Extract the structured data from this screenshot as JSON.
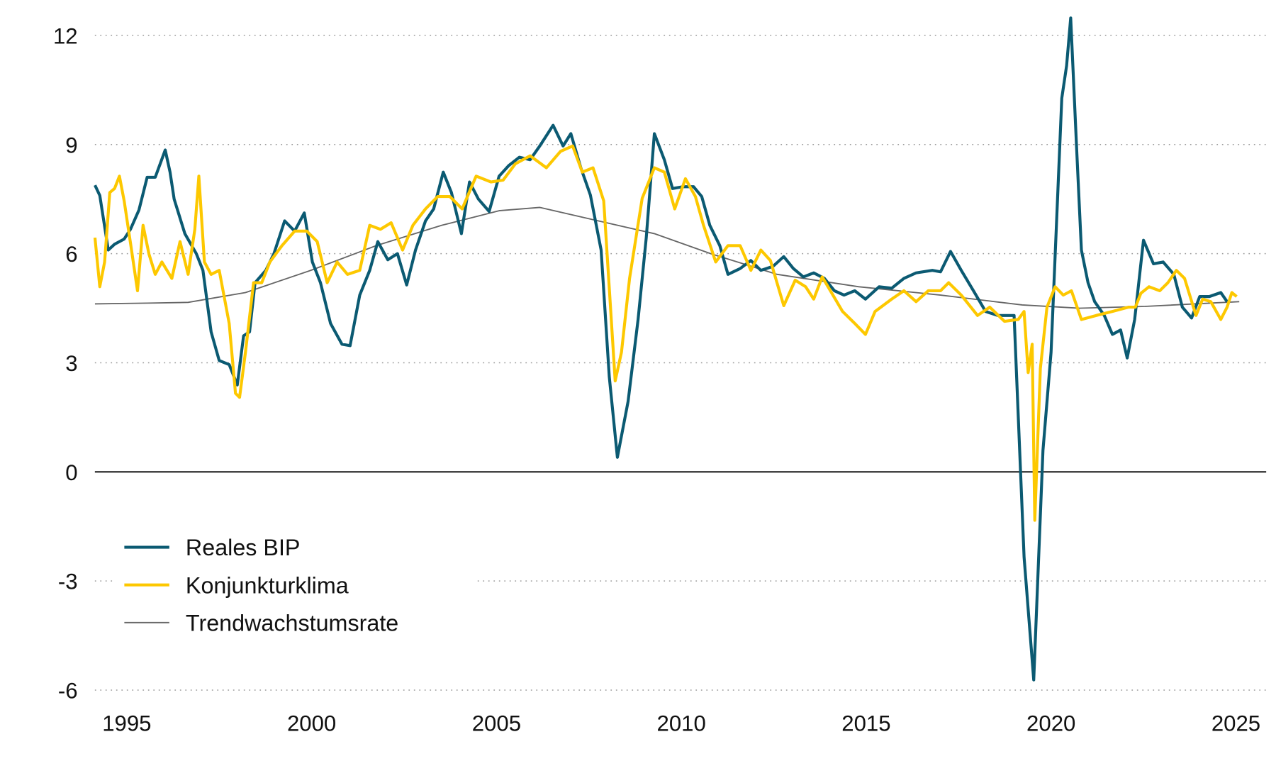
{
  "chart_data": {
    "type": "line",
    "title": "",
    "xlabel": "",
    "ylabel": "",
    "xlim": [
      1994.1,
      2025.3
    ],
    "ylim": [
      -6,
      12.5
    ],
    "x_ticks": [
      1995,
      2000,
      2005,
      2010,
      2015,
      2020,
      2025
    ],
    "y_ticks": [
      12,
      9,
      6,
      3,
      0,
      -3,
      -6
    ],
    "grid": "horizontal dotted",
    "legend_position": "bottom-left",
    "series": [
      {
        "name": "Reales BIP",
        "color": "#0b5a72",
        "points": [
          [
            1994.14,
            7.88
          ],
          [
            1994.27,
            7.6
          ],
          [
            1994.5,
            6.1
          ],
          [
            1994.67,
            6.26
          ],
          [
            1994.93,
            6.4
          ],
          [
            1995.1,
            6.67
          ],
          [
            1995.33,
            7.2
          ],
          [
            1995.55,
            8.1
          ],
          [
            1995.77,
            8.1
          ],
          [
            1996.04,
            8.85
          ],
          [
            1996.17,
            8.24
          ],
          [
            1996.28,
            7.5
          ],
          [
            1996.57,
            6.55
          ],
          [
            1996.88,
            6.0
          ],
          [
            1997.06,
            5.54
          ],
          [
            1997.28,
            3.85
          ],
          [
            1997.5,
            3.06
          ],
          [
            1997.77,
            2.95
          ],
          [
            1997.99,
            2.39
          ],
          [
            1998.16,
            3.74
          ],
          [
            1998.32,
            3.85
          ],
          [
            1998.47,
            5.2
          ],
          [
            1998.76,
            5.54
          ],
          [
            1998.98,
            6.0
          ],
          [
            1999.27,
            6.9
          ],
          [
            1999.54,
            6.62
          ],
          [
            1999.8,
            7.12
          ],
          [
            2000.02,
            5.77
          ],
          [
            2000.24,
            5.2
          ],
          [
            2000.51,
            4.08
          ],
          [
            2000.82,
            3.51
          ],
          [
            2001.04,
            3.47
          ],
          [
            2001.3,
            4.86
          ],
          [
            2001.57,
            5.54
          ],
          [
            2001.79,
            6.33
          ],
          [
            2002.06,
            5.83
          ],
          [
            2002.32,
            6.0
          ],
          [
            2002.57,
            5.14
          ],
          [
            2002.81,
            6.1
          ],
          [
            2003.08,
            6.9
          ],
          [
            2003.3,
            7.23
          ],
          [
            2003.56,
            8.24
          ],
          [
            2003.78,
            7.68
          ],
          [
            2004.05,
            6.55
          ],
          [
            2004.27,
            7.97
          ],
          [
            2004.51,
            7.5
          ],
          [
            2004.8,
            7.16
          ],
          [
            2005.07,
            8.13
          ],
          [
            2005.33,
            8.42
          ],
          [
            2005.62,
            8.65
          ],
          [
            2005.91,
            8.58
          ],
          [
            2006.17,
            8.96
          ],
          [
            2006.53,
            9.53
          ],
          [
            2006.8,
            8.96
          ],
          [
            2007.01,
            9.3
          ],
          [
            2007.28,
            8.36
          ],
          [
            2007.54,
            7.61
          ],
          [
            2007.83,
            6.1
          ],
          [
            2008.05,
            2.61
          ],
          [
            2008.27,
            0.4
          ],
          [
            2008.56,
            1.94
          ],
          [
            2008.83,
            4.19
          ],
          [
            2009.05,
            6.44
          ],
          [
            2009.27,
            9.3
          ],
          [
            2009.54,
            8.58
          ],
          [
            2009.76,
            7.79
          ],
          [
            2010.04,
            7.84
          ],
          [
            2010.33,
            7.84
          ],
          [
            2010.55,
            7.57
          ],
          [
            2010.77,
            6.78
          ],
          [
            2011.04,
            6.22
          ],
          [
            2011.26,
            5.43
          ],
          [
            2011.59,
            5.59
          ],
          [
            2011.88,
            5.81
          ],
          [
            2012.15,
            5.54
          ],
          [
            2012.48,
            5.65
          ],
          [
            2012.77,
            5.92
          ],
          [
            2013.03,
            5.59
          ],
          [
            2013.3,
            5.36
          ],
          [
            2013.58,
            5.47
          ],
          [
            2013.87,
            5.32
          ],
          [
            2014.14,
            4.98
          ],
          [
            2014.4,
            4.86
          ],
          [
            2014.69,
            4.98
          ],
          [
            2014.98,
            4.75
          ],
          [
            2015.35,
            5.09
          ],
          [
            2015.69,
            5.05
          ],
          [
            2016.02,
            5.32
          ],
          [
            2016.35,
            5.47
          ],
          [
            2016.79,
            5.54
          ],
          [
            2017.01,
            5.5
          ],
          [
            2017.28,
            6.06
          ],
          [
            2017.57,
            5.54
          ],
          [
            2017.9,
            4.98
          ],
          [
            2018.23,
            4.41
          ],
          [
            2018.56,
            4.3
          ],
          [
            2019.0,
            4.3
          ],
          [
            2019.27,
            -2.34
          ],
          [
            2019.53,
            -5.72
          ],
          [
            2019.78,
            0.59
          ],
          [
            2020.0,
            3.29
          ],
          [
            2020.29,
            10.27
          ],
          [
            2020.42,
            11.17
          ],
          [
            2020.53,
            12.48
          ],
          [
            2020.69,
            8.92
          ],
          [
            2020.82,
            6.1
          ],
          [
            2021.0,
            5.2
          ],
          [
            2021.18,
            4.68
          ],
          [
            2021.44,
            4.3
          ],
          [
            2021.66,
            3.78
          ],
          [
            2021.88,
            3.9
          ],
          [
            2022.06,
            3.13
          ],
          [
            2022.26,
            4.19
          ],
          [
            2022.5,
            6.37
          ],
          [
            2022.77,
            5.72
          ],
          [
            2023.03,
            5.77
          ],
          [
            2023.32,
            5.43
          ],
          [
            2023.55,
            4.53
          ],
          [
            2023.8,
            4.23
          ],
          [
            2024.02,
            4.82
          ],
          [
            2024.28,
            4.82
          ],
          [
            2024.59,
            4.93
          ],
          [
            2024.76,
            4.68
          ]
        ]
      },
      {
        "name": "Konjunkturklima",
        "color": "#fdc800",
        "points": [
          [
            1994.14,
            6.44
          ],
          [
            1994.27,
            5.09
          ],
          [
            1994.4,
            5.77
          ],
          [
            1994.54,
            7.68
          ],
          [
            1994.67,
            7.79
          ],
          [
            1994.8,
            8.13
          ],
          [
            1994.93,
            7.45
          ],
          [
            1995.11,
            6.22
          ],
          [
            1995.29,
            4.98
          ],
          [
            1995.44,
            6.78
          ],
          [
            1995.6,
            5.99
          ],
          [
            1995.77,
            5.43
          ],
          [
            1995.95,
            5.77
          ],
          [
            1996.22,
            5.32
          ],
          [
            1996.44,
            6.33
          ],
          [
            1996.66,
            5.43
          ],
          [
            1996.84,
            6.67
          ],
          [
            1996.95,
            8.13
          ],
          [
            1997.1,
            5.77
          ],
          [
            1997.28,
            5.43
          ],
          [
            1997.5,
            5.54
          ],
          [
            1997.77,
            4.08
          ],
          [
            1997.94,
            2.16
          ],
          [
            1998.05,
            2.05
          ],
          [
            1998.21,
            3.29
          ],
          [
            1998.43,
            5.2
          ],
          [
            1998.65,
            5.2
          ],
          [
            1998.87,
            5.77
          ],
          [
            1999.2,
            6.22
          ],
          [
            1999.54,
            6.62
          ],
          [
            1999.87,
            6.62
          ],
          [
            2000.15,
            6.33
          ],
          [
            2000.42,
            5.2
          ],
          [
            2000.69,
            5.77
          ],
          [
            2000.97,
            5.43
          ],
          [
            2001.3,
            5.54
          ],
          [
            2001.57,
            6.78
          ],
          [
            2001.86,
            6.67
          ],
          [
            2002.15,
            6.85
          ],
          [
            2002.46,
            6.1
          ],
          [
            2002.74,
            6.78
          ],
          [
            2003.08,
            7.23
          ],
          [
            2003.41,
            7.57
          ],
          [
            2003.74,
            7.57
          ],
          [
            2004.07,
            7.23
          ],
          [
            2004.45,
            8.13
          ],
          [
            2004.85,
            7.97
          ],
          [
            2005.18,
            8.02
          ],
          [
            2005.51,
            8.47
          ],
          [
            2005.91,
            8.69
          ],
          [
            2006.35,
            8.36
          ],
          [
            2006.73,
            8.81
          ],
          [
            2007.06,
            8.96
          ],
          [
            2007.32,
            8.24
          ],
          [
            2007.61,
            8.36
          ],
          [
            2007.9,
            7.45
          ],
          [
            2008.21,
            2.5
          ],
          [
            2008.38,
            3.29
          ],
          [
            2008.6,
            5.32
          ],
          [
            2008.94,
            7.52
          ],
          [
            2009.27,
            8.36
          ],
          [
            2009.54,
            8.24
          ],
          [
            2009.82,
            7.23
          ],
          [
            2010.11,
            8.06
          ],
          [
            2010.38,
            7.57
          ],
          [
            2010.6,
            6.78
          ],
          [
            2010.93,
            5.77
          ],
          [
            2011.26,
            6.22
          ],
          [
            2011.59,
            6.22
          ],
          [
            2011.88,
            5.54
          ],
          [
            2012.15,
            6.1
          ],
          [
            2012.41,
            5.81
          ],
          [
            2012.77,
            4.57
          ],
          [
            2013.08,
            5.27
          ],
          [
            2013.36,
            5.09
          ],
          [
            2013.58,
            4.75
          ],
          [
            2013.81,
            5.36
          ],
          [
            2014.03,
            4.98
          ],
          [
            2014.36,
            4.41
          ],
          [
            2014.69,
            4.08
          ],
          [
            2014.98,
            3.78
          ],
          [
            2015.24,
            4.41
          ],
          [
            2015.69,
            4.75
          ],
          [
            2016.02,
            4.98
          ],
          [
            2016.35,
            4.68
          ],
          [
            2016.68,
            4.98
          ],
          [
            2017.01,
            4.98
          ],
          [
            2017.23,
            5.2
          ],
          [
            2017.57,
            4.86
          ],
          [
            2018.01,
            4.3
          ],
          [
            2018.34,
            4.53
          ],
          [
            2018.74,
            4.14
          ],
          [
            2019.11,
            4.19
          ],
          [
            2019.27,
            4.41
          ],
          [
            2019.38,
            2.73
          ],
          [
            2019.49,
            3.51
          ],
          [
            2019.56,
            -1.33
          ],
          [
            2019.71,
            2.84
          ],
          [
            2019.89,
            4.53
          ],
          [
            2020.11,
            5.09
          ],
          [
            2020.33,
            4.86
          ],
          [
            2020.55,
            4.98
          ],
          [
            2020.82,
            4.19
          ],
          [
            2021.22,
            4.3
          ],
          [
            2021.66,
            4.41
          ],
          [
            2022.1,
            4.53
          ],
          [
            2022.28,
            4.53
          ],
          [
            2022.43,
            4.91
          ],
          [
            2022.65,
            5.09
          ],
          [
            2022.94,
            4.98
          ],
          [
            2023.16,
            5.2
          ],
          [
            2023.39,
            5.54
          ],
          [
            2023.61,
            5.32
          ],
          [
            2023.92,
            4.3
          ],
          [
            2024.1,
            4.75
          ],
          [
            2024.32,
            4.68
          ],
          [
            2024.59,
            4.19
          ],
          [
            2024.76,
            4.53
          ],
          [
            2024.89,
            4.93
          ],
          [
            2025.02,
            4.82
          ]
        ]
      },
      {
        "name": "Trendwachstumsrate",
        "color": "#666666",
        "points": [
          [
            1994.14,
            4.62
          ],
          [
            1995.55,
            4.64
          ],
          [
            1996.66,
            4.66
          ],
          [
            1998.21,
            4.93
          ],
          [
            1999.98,
            5.54
          ],
          [
            2001.75,
            6.22
          ],
          [
            2003.52,
            6.78
          ],
          [
            2005.07,
            7.18
          ],
          [
            2006.17,
            7.27
          ],
          [
            2007.5,
            6.96
          ],
          [
            2009.27,
            6.55
          ],
          [
            2010.82,
            5.99
          ],
          [
            2012.59,
            5.43
          ],
          [
            2014.8,
            5.09
          ],
          [
            2017.01,
            4.86
          ],
          [
            2019.22,
            4.59
          ],
          [
            2020.77,
            4.5
          ],
          [
            2022.54,
            4.55
          ],
          [
            2025.09,
            4.68
          ]
        ]
      }
    ]
  }
}
